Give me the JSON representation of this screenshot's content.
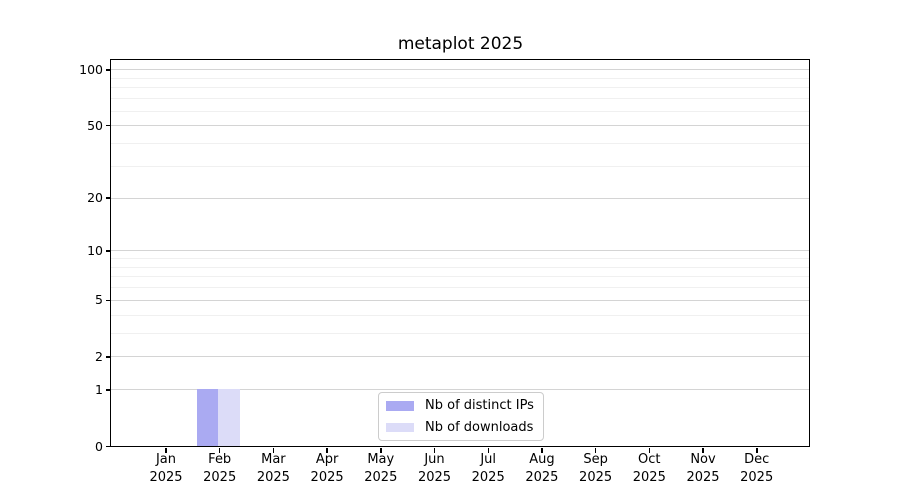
{
  "chart_data": {
    "type": "bar",
    "title": "metaplot 2025",
    "yscale": "log1p",
    "ylim": [
      0,
      112
    ],
    "yticks_major": [
      0,
      1,
      2,
      5,
      10,
      20,
      50,
      100
    ],
    "yticks_minor": [
      3,
      4,
      6,
      7,
      8,
      9,
      30,
      40,
      60,
      70,
      80,
      90
    ],
    "grid": "horizontal, major and minor, on",
    "xlabel": "",
    "ylabel": "",
    "x_tick_labels": [
      {
        "month": "Jan",
        "year": "2025"
      },
      {
        "month": "Feb",
        "year": "2025"
      },
      {
        "month": "Mar",
        "year": "2025"
      },
      {
        "month": "Apr",
        "year": "2025"
      },
      {
        "month": "May",
        "year": "2025"
      },
      {
        "month": "Jun",
        "year": "2025"
      },
      {
        "month": "Jul",
        "year": "2025"
      },
      {
        "month": "Aug",
        "year": "2025"
      },
      {
        "month": "Sep",
        "year": "2025"
      },
      {
        "month": "Oct",
        "year": "2025"
      },
      {
        "month": "Nov",
        "year": "2025"
      },
      {
        "month": "Dec",
        "year": "2025"
      }
    ],
    "series": [
      {
        "name": "Nb of distinct IPs",
        "color": "#aaaaf2",
        "values": [
          0,
          1,
          0,
          0,
          0,
          0,
          0,
          0,
          0,
          0,
          0,
          0
        ]
      },
      {
        "name": "Nb of downloads",
        "color": "#dcdcf8",
        "values": [
          0,
          1,
          0,
          0,
          0,
          0,
          0,
          0,
          0,
          0,
          0,
          0
        ]
      }
    ],
    "legend_position": "lower center, inside plot"
  },
  "theme": {
    "major_grid_color": "#d4d4d4",
    "minor_grid_color": "#f0f0f0",
    "spine_color": "#000000",
    "legend_border_color": "#cccccc",
    "background": "#ffffff"
  }
}
